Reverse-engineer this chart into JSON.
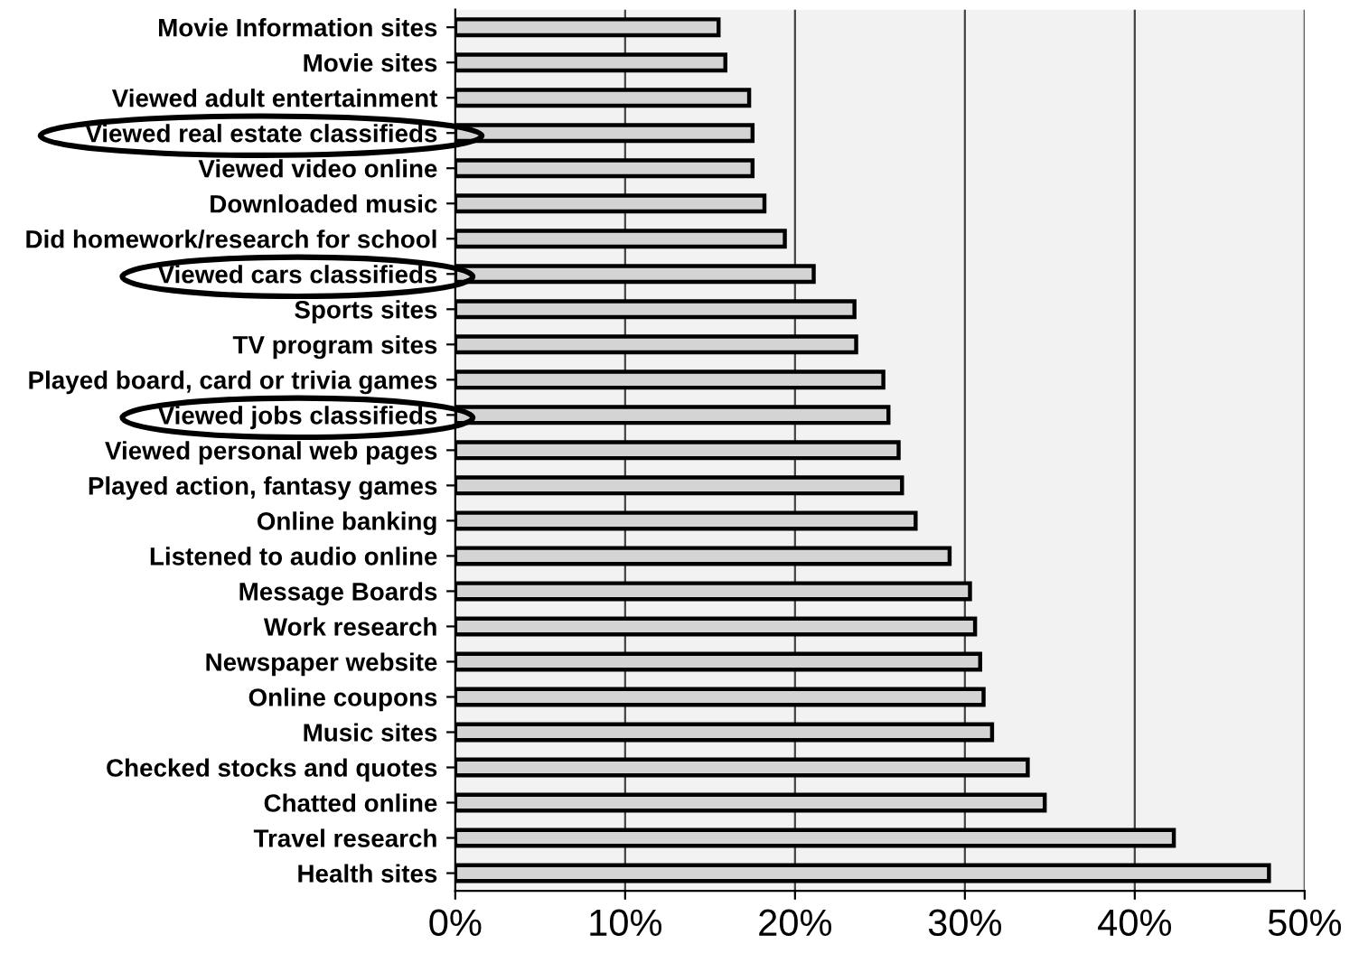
{
  "chart_data": {
    "type": "bar",
    "orientation": "horizontal",
    "categories": [
      "Movie Information sites",
      "Movie sites",
      "Viewed adult entertainment",
      "Viewed real estate classifieds",
      "Viewed video online",
      "Downloaded music",
      "Did homework/research for school",
      "Viewed cars classifieds",
      "Sports sites",
      "TV program sites",
      "Played board, card or trivia games",
      "Viewed jobs classifieds",
      "Viewed personal web pages",
      "Played action, fantasy games",
      "Online banking",
      "Listened to audio online",
      "Message Boards",
      "Work research",
      "Newspaper website",
      "Online coupons",
      "Music sites",
      "Checked stocks and quotes",
      "Chatted online",
      "Travel research",
      "Health sites"
    ],
    "values": [
      15.5,
      15.9,
      17.3,
      17.5,
      17.5,
      18.2,
      19.4,
      21.1,
      23.5,
      23.6,
      25.2,
      25.5,
      26.1,
      26.3,
      27.1,
      29.1,
      30.3,
      30.6,
      30.9,
      31.1,
      31.6,
      33.7,
      34.7,
      42.3,
      47.9
    ],
    "color": "#d4d4d4",
    "xlim": [
      0,
      50
    ],
    "xticks": [
      {
        "value": 0,
        "label": "0%"
      },
      {
        "value": 10,
        "label": "10%"
      },
      {
        "value": 20,
        "label": "20%"
      },
      {
        "value": 30,
        "label": "30%"
      },
      {
        "value": 40,
        "label": "40%"
      },
      {
        "value": 50,
        "label": "50%"
      }
    ],
    "grid": "x"
  }
}
